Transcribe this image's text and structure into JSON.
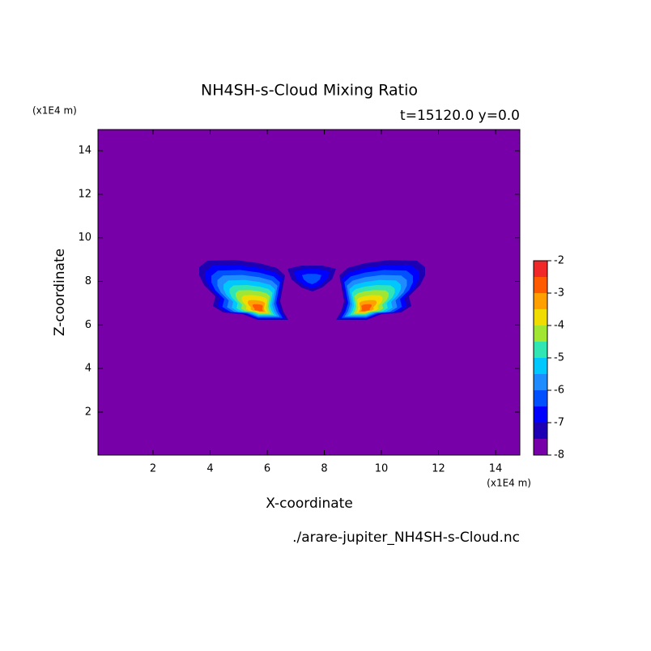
{
  "chart_data": {
    "type": "contour",
    "title": "NH4SH-s-Cloud Mixing Ratio",
    "subtitle": "t=15120.0 y=0.0",
    "x_label": "X-coordinate",
    "y_label": "Z-coordinate",
    "x_unit": "(x1E4 m)",
    "y_unit": "(x1E4 m)",
    "source": "./arare-jupiter_NH4SH-s-Cloud.nc",
    "xlim": [
      0.07,
      14.85
    ],
    "ylim": [
      0.03,
      14.97
    ],
    "xticks": [
      2,
      4,
      6,
      8,
      10,
      12,
      14
    ],
    "yticks": [
      2,
      4,
      6,
      8,
      10,
      12,
      14
    ],
    "levels": [
      -8,
      -7.5,
      -7,
      -6.5,
      -6,
      -5.5,
      -5,
      -4.5,
      -4,
      -3.5,
      -3,
      -2.5,
      -2
    ],
    "colors": [
      "#7800a8",
      "#1e00b4",
      "#0000ff",
      "#0050ff",
      "#1e8cff",
      "#00c8ff",
      "#32e6b4",
      "#a0e632",
      "#f0dc00",
      "#ffa000",
      "#ff5a00",
      "#f02828",
      "#ffaaaa"
    ],
    "colorbar_ticks": [
      -8,
      -7,
      -6,
      -5,
      -4,
      -3,
      -2
    ]
  }
}
